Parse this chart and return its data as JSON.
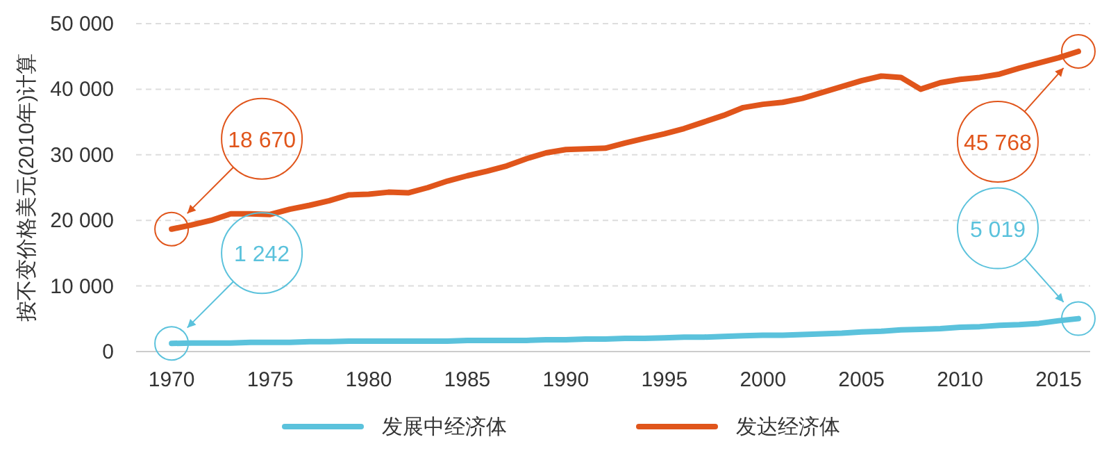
{
  "chart_data": {
    "type": "line",
    "ylabel": "按不变价格美元(2010年)计算",
    "x": [
      1970,
      1971,
      1972,
      1973,
      1974,
      1975,
      1976,
      1977,
      1978,
      1979,
      1980,
      1981,
      1982,
      1983,
      1984,
      1985,
      1986,
      1987,
      1988,
      1989,
      1990,
      1991,
      1992,
      1993,
      1994,
      1995,
      1996,
      1997,
      1998,
      1999,
      2000,
      2001,
      2002,
      2003,
      2004,
      2005,
      2006,
      2007,
      2008,
      2009,
      2010,
      2011,
      2012,
      2013,
      2014,
      2015,
      2016
    ],
    "series": [
      {
        "name": "发展中经济体",
        "color": "#5bc2dc",
        "values": [
          1242,
          1300,
          1300,
          1300,
          1400,
          1400,
          1400,
          1500,
          1500,
          1600,
          1600,
          1600,
          1600,
          1600,
          1600,
          1700,
          1700,
          1700,
          1700,
          1800,
          1800,
          1900,
          1900,
          2000,
          2000,
          2100,
          2200,
          2200,
          2300,
          2400,
          2500,
          2500,
          2600,
          2700,
          2800,
          3000,
          3100,
          3300,
          3400,
          3500,
          3700,
          3800,
          4000,
          4100,
          4300,
          4700,
          5019
        ],
        "value_labels": [
          "1 242",
          null,
          null,
          null,
          null,
          null,
          null,
          null,
          null,
          null,
          null,
          null,
          null,
          null,
          null,
          null,
          null,
          null,
          null,
          null,
          null,
          null,
          null,
          null,
          null,
          null,
          null,
          null,
          null,
          null,
          null,
          null,
          null,
          null,
          null,
          null,
          null,
          null,
          null,
          null,
          null,
          null,
          null,
          null,
          null,
          null,
          "5 019"
        ]
      },
      {
        "name": "发达经济体",
        "color": "#e0551b",
        "values": [
          18670,
          19300,
          20000,
          21000,
          21000,
          20900,
          21700,
          22300,
          23000,
          23900,
          24000,
          24300,
          24200,
          25000,
          26000,
          26800,
          27500,
          28300,
          29400,
          30300,
          30800,
          30900,
          31000,
          31800,
          32500,
          33200,
          34000,
          35000,
          36000,
          37200,
          37700,
          38000,
          38600,
          39500,
          40400,
          41300,
          42000,
          41800,
          40000,
          41000,
          41500,
          41800,
          42300,
          43200,
          44000,
          44800,
          45768
        ],
        "value_labels": [
          "18 670",
          null,
          null,
          null,
          null,
          null,
          null,
          null,
          null,
          null,
          null,
          null,
          null,
          null,
          null,
          null,
          null,
          null,
          null,
          null,
          null,
          null,
          null,
          null,
          null,
          null,
          null,
          null,
          null,
          null,
          null,
          null,
          null,
          null,
          null,
          null,
          null,
          null,
          null,
          null,
          null,
          null,
          null,
          null,
          null,
          null,
          "45 768"
        ]
      }
    ],
    "xlim": [
      1968.2,
      2016.6
    ],
    "xticks": [
      1970,
      1975,
      1980,
      1985,
      1990,
      1995,
      2000,
      2005,
      2010,
      2015
    ],
    "ylim": [
      0,
      50000
    ],
    "yticks": [
      {
        "value": 0,
        "label": "0"
      },
      {
        "value": 10000,
        "label": "10 000"
      },
      {
        "value": 20000,
        "label": "20 000"
      },
      {
        "value": 30000,
        "label": "30 000"
      },
      {
        "value": 40000,
        "label": "40 000"
      },
      {
        "value": 50000,
        "label": "50 000"
      }
    ],
    "grid": "y",
    "legend": "bottom",
    "line_style": "solid",
    "marker": "none"
  }
}
